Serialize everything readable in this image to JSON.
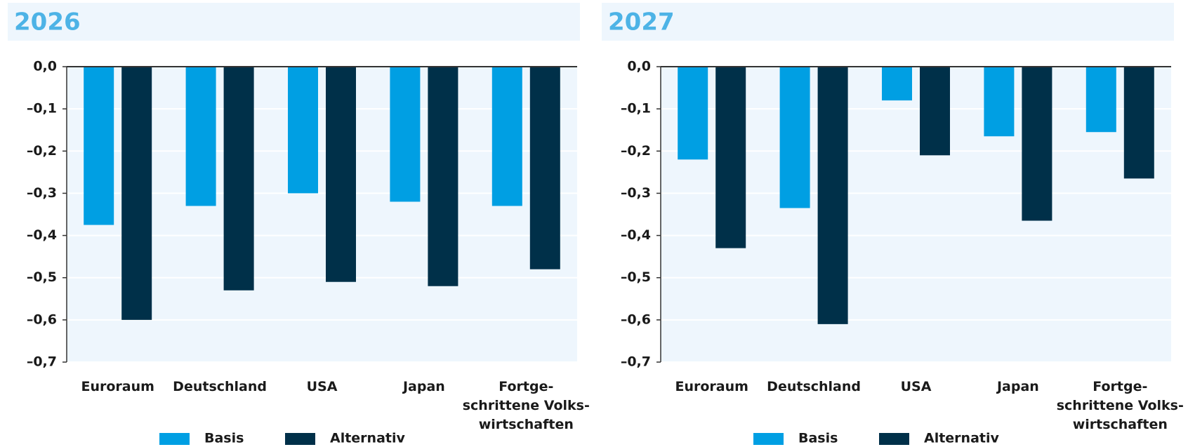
{
  "chart_data": [
    {
      "type": "bar",
      "title": "2026",
      "categories": [
        "Euroraum",
        "Deutschland",
        "USA",
        "Japan",
        "Fortge-\nschrittene Volks-\nwirtschaften"
      ],
      "series": [
        {
          "name": "Basis",
          "color": "#009fe3",
          "values": [
            -0.375,
            -0.33,
            -0.3,
            -0.32,
            -0.33
          ]
        },
        {
          "name": "Alternativ",
          "color": "#003049",
          "values": [
            -0.6,
            -0.53,
            -0.51,
            -0.52,
            -0.48
          ]
        }
      ],
      "ylim": [
        -0.7,
        0
      ],
      "yticks": [
        {
          "value": 0,
          "label": "0,0"
        },
        {
          "value": -0.1,
          "label": "–0,1"
        },
        {
          "value": -0.2,
          "label": "–0,2"
        },
        {
          "value": -0.3,
          "label": "–0,3"
        },
        {
          "value": -0.4,
          "label": "–0,4"
        },
        {
          "value": -0.5,
          "label": "–0,5"
        },
        {
          "value": -0.6,
          "label": "–0,6"
        },
        {
          "value": -0.7,
          "label": "–0,7"
        }
      ],
      "grid": true
    },
    {
      "type": "bar",
      "title": "2027",
      "categories": [
        "Euroraum",
        "Deutschland",
        "USA",
        "Japan",
        "Fortge-\nschrittene Volks-\nwirtschaften"
      ],
      "series": [
        {
          "name": "Basis",
          "color": "#009fe3",
          "values": [
            -0.22,
            -0.335,
            -0.08,
            -0.165,
            -0.155
          ]
        },
        {
          "name": "Alternativ",
          "color": "#003049",
          "values": [
            -0.43,
            -0.61,
            -0.21,
            -0.365,
            -0.265
          ]
        }
      ],
      "ylim": [
        -0.7,
        0
      ],
      "yticks": [
        {
          "value": 0,
          "label": "0,0"
        },
        {
          "value": -0.1,
          "label": "–0,1"
        },
        {
          "value": -0.2,
          "label": "–0,2"
        },
        {
          "value": -0.3,
          "label": "–0,3"
        },
        {
          "value": -0.4,
          "label": "–0,4"
        },
        {
          "value": -0.5,
          "label": "–0,5"
        },
        {
          "value": -0.6,
          "label": "–0,6"
        },
        {
          "value": -0.7,
          "label": "–0,7"
        }
      ],
      "grid": true
    }
  ]
}
